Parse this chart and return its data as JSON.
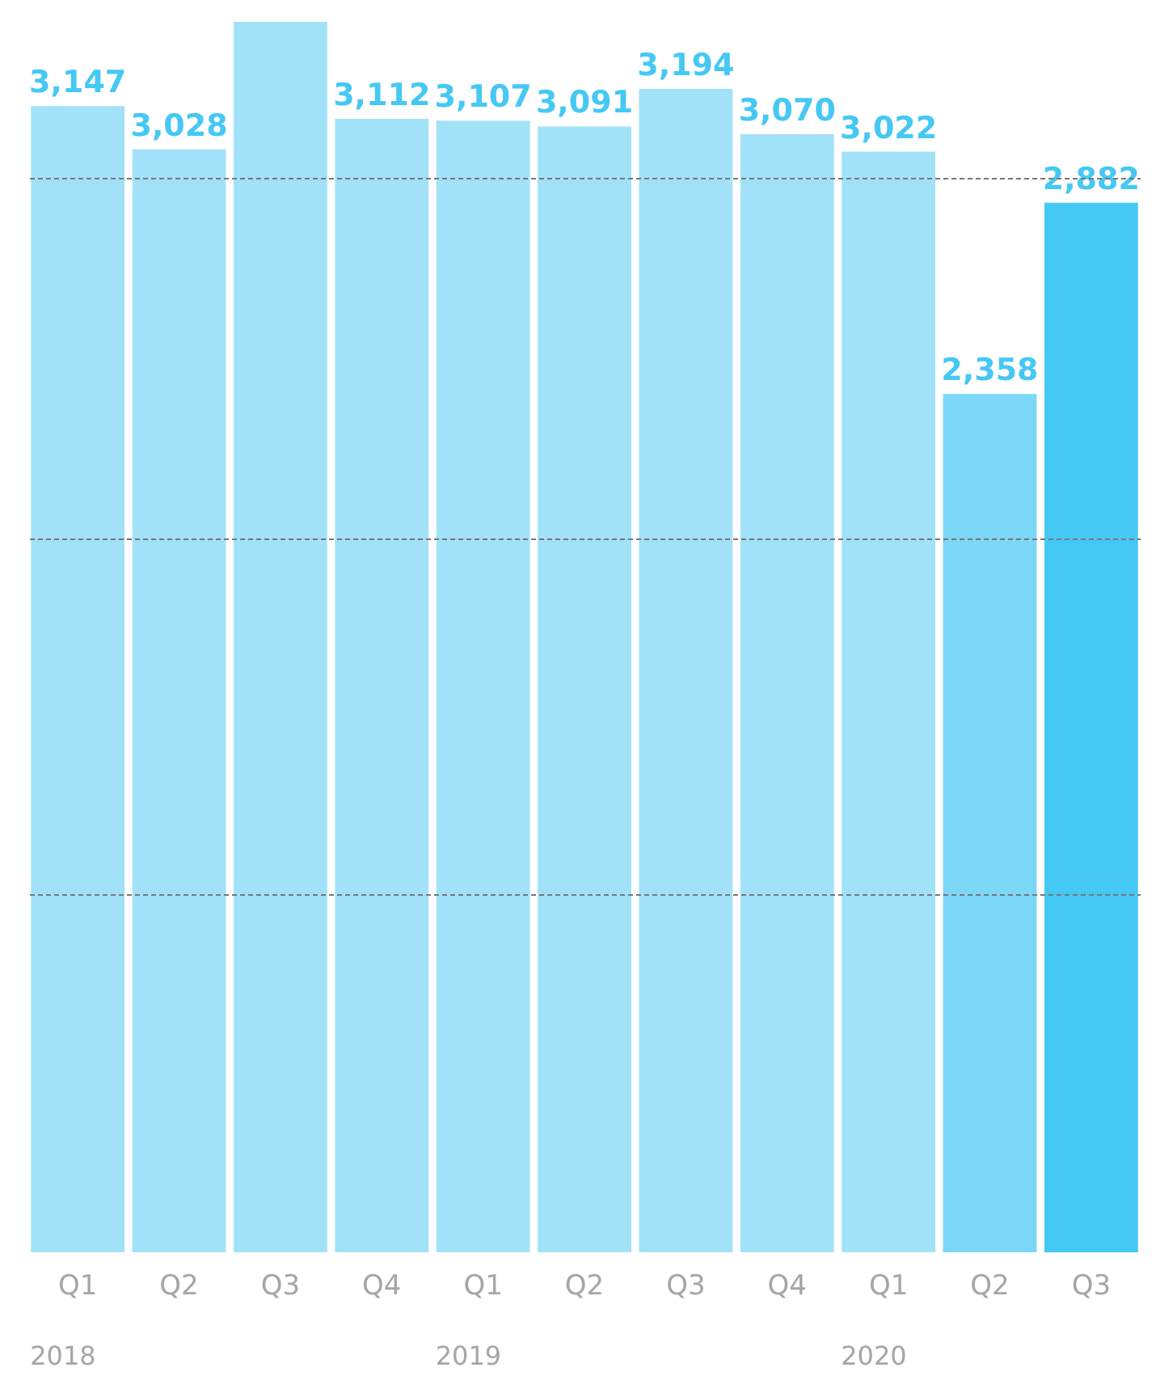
{
  "chart_data": {
    "type": "bar",
    "categories": [
      "Q1",
      "Q2",
      "Q3",
      "Q4",
      "Q1",
      "Q2",
      "Q3",
      "Q4",
      "Q1",
      "Q2",
      "Q3"
    ],
    "values": [
      3147,
      3028,
      3378,
      3112,
      3107,
      3091,
      3194,
      3070,
      3022,
      2358,
      2882
    ],
    "colors": [
      "#a2e2f8",
      "#a2e2f8",
      "#a2e2f8",
      "#a2e2f8",
      "#a2e2f8",
      "#a2e2f8",
      "#a2e2f8",
      "#a2e2f8",
      "#a2e2f8",
      "#7cd6f6",
      "#46c8f4"
    ],
    "value_labels": [
      "3,147",
      "3,028",
      null,
      "3,112",
      "3,107",
      "3,091",
      "3,194",
      "3,070",
      "3,022",
      "2,358",
      "2,882"
    ],
    "annotations": [
      "2018",
      "2019",
      "2020"
    ],
    "ylim": [
      0,
      3400
    ],
    "yticks": [
      {
        "value": 985,
        "label": null
      },
      {
        "value": 1960,
        "label": null
      },
      {
        "value": 2950,
        "label": null
      }
    ],
    "grid": "y",
    "tick_labels": "x"
  }
}
